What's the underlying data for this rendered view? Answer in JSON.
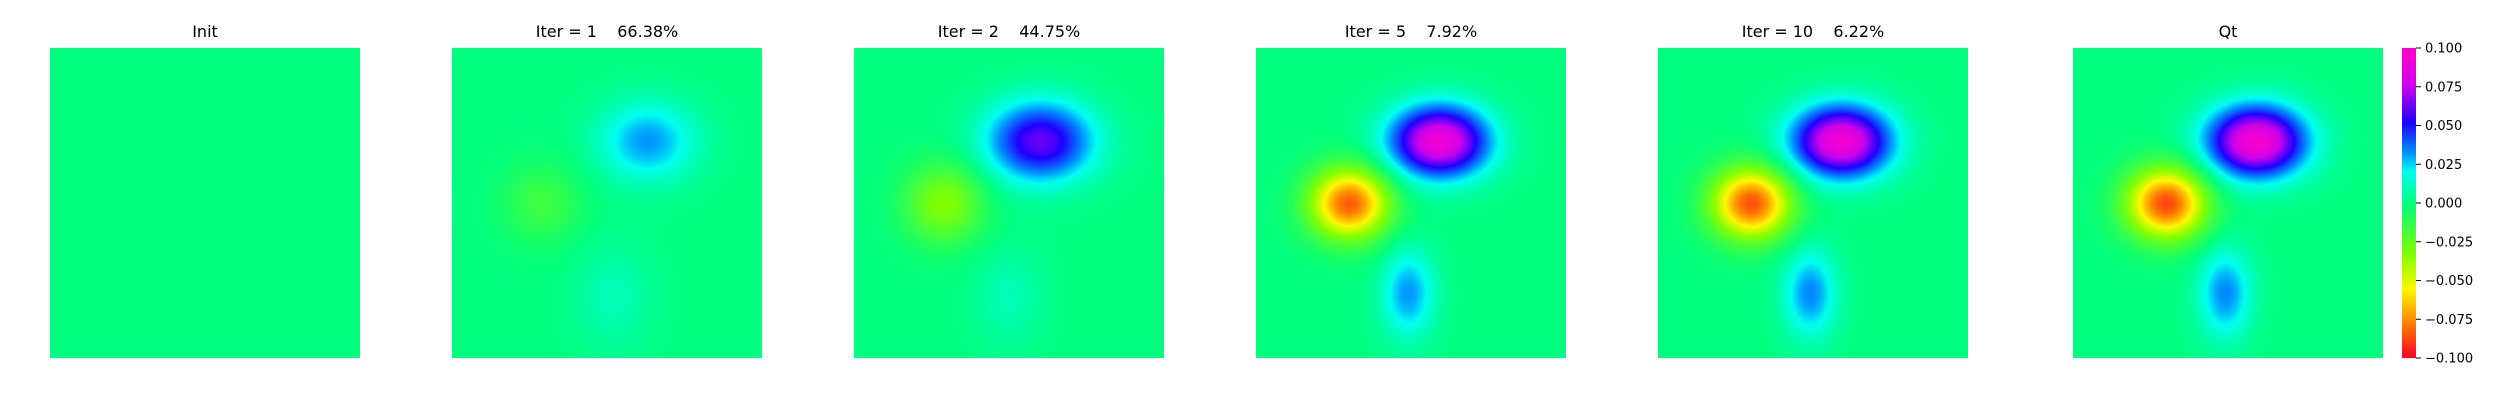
{
  "chart_data": {
    "type": "heatmap",
    "colormap": "gist_rainbow_r",
    "colorbar": {
      "vmin": -0.1,
      "vmax": 0.1,
      "ticks": [
        -0.1,
        -0.075,
        -0.05,
        -0.025,
        0.0,
        0.025,
        0.05,
        0.075,
        0.1
      ],
      "tick_labels": [
        "−0.100",
        "−0.075",
        "−0.050",
        "−0.025",
        "0.000",
        "0.025",
        "0.050",
        "0.075",
        "0.100"
      ]
    },
    "grid": false,
    "axes_visible": false,
    "panels": [
      {
        "title": "Init",
        "features": []
      },
      {
        "title": "Iter = 1    66.38%",
        "features": [
          {
            "kind": "gaussian",
            "cx": 0.63,
            "cy": 0.3,
            "sx": 0.11,
            "sy": 0.09,
            "amp": 0.032
          },
          {
            "kind": "gaussian",
            "cx": 0.29,
            "cy": 0.5,
            "sx": 0.09,
            "sy": 0.09,
            "amp": -0.016
          },
          {
            "kind": "gaussian",
            "cx": 0.52,
            "cy": 0.8,
            "sx": 0.09,
            "sy": 0.12,
            "amp": 0.01
          }
        ]
      },
      {
        "title": "Iter = 2    44.75%",
        "features": [
          {
            "kind": "gaussian",
            "cx": 0.6,
            "cy": 0.3,
            "sx": 0.12,
            "sy": 0.09,
            "amp": 0.062
          },
          {
            "kind": "gaussian",
            "cx": 0.29,
            "cy": 0.5,
            "sx": 0.09,
            "sy": 0.09,
            "amp": -0.034
          },
          {
            "kind": "gaussian",
            "cx": 0.5,
            "cy": 0.8,
            "sx": 0.08,
            "sy": 0.11,
            "amp": 0.01
          }
        ]
      },
      {
        "title": "Iter = 5    7.92%",
        "features": [
          {
            "kind": "gaussian",
            "cx": 0.59,
            "cy": 0.3,
            "sx": 0.11,
            "sy": 0.08,
            "amp": 0.092
          },
          {
            "kind": "gaussian",
            "cx": 0.3,
            "cy": 0.5,
            "sx": 0.09,
            "sy": 0.08,
            "amp": -0.084
          },
          {
            "kind": "gaussian",
            "cx": 0.49,
            "cy": 0.79,
            "sx": 0.06,
            "sy": 0.1,
            "amp": 0.032
          }
        ]
      },
      {
        "title": "Iter = 10    6.22%",
        "features": [
          {
            "kind": "gaussian",
            "cx": 0.59,
            "cy": 0.3,
            "sx": 0.11,
            "sy": 0.08,
            "amp": 0.094
          },
          {
            "kind": "gaussian",
            "cx": 0.3,
            "cy": 0.5,
            "sx": 0.09,
            "sy": 0.08,
            "amp": -0.086
          },
          {
            "kind": "gaussian",
            "cx": 0.49,
            "cy": 0.79,
            "sx": 0.06,
            "sy": 0.1,
            "amp": 0.034
          }
        ]
      },
      {
        "title": "Qt",
        "features": [
          {
            "kind": "gaussian",
            "cx": 0.59,
            "cy": 0.3,
            "sx": 0.11,
            "sy": 0.08,
            "amp": 0.096
          },
          {
            "kind": "gaussian",
            "cx": 0.3,
            "cy": 0.5,
            "sx": 0.09,
            "sy": 0.08,
            "amp": -0.088
          },
          {
            "kind": "gaussian",
            "cx": 0.49,
            "cy": 0.79,
            "sx": 0.06,
            "sy": 0.1,
            "amp": 0.034
          }
        ]
      }
    ]
  }
}
